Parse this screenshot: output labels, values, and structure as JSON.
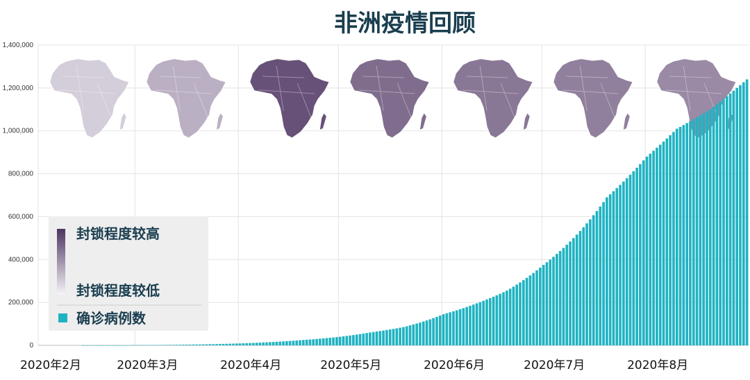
{
  "chart_data": {
    "type": "bar",
    "title": "非洲疫情回顾",
    "xlabel": "",
    "ylabel": "",
    "ylim": [
      0,
      1400000
    ],
    "y_ticks": [
      0,
      200000,
      400000,
      600000,
      800000,
      1000000,
      1200000,
      1400000
    ],
    "y_tick_labels": [
      "0",
      "200,000",
      "400,000",
      "600,000",
      "800,000",
      "1,000,000",
      "1,200,000",
      "1,400,000"
    ],
    "x_tick_labels": [
      "2020年2月",
      "2020年3月",
      "2020年4月",
      "2020年5月",
      "2020年6月",
      "2020年7月",
      "2020年8月"
    ],
    "x_range": [
      "2020-02-01",
      "2020-08-31"
    ],
    "grid": true,
    "series": [
      {
        "name": "确诊病例数",
        "color": "#1fb3c2",
        "x": [
          "2020-02-14",
          "2020-03-01",
          "2020-03-15",
          "2020-03-25",
          "2020-04-01",
          "2020-04-10",
          "2020-04-20",
          "2020-05-01",
          "2020-05-10",
          "2020-05-20",
          "2020-06-01",
          "2020-06-10",
          "2020-06-20",
          "2020-07-01",
          "2020-07-10",
          "2020-07-20",
          "2020-08-01",
          "2020-08-10",
          "2020-08-20",
          "2020-08-31"
        ],
        "values": [
          1,
          1000,
          3000,
          6000,
          9000,
          15000,
          25000,
          40000,
          60000,
          85000,
          145000,
          190000,
          255000,
          375000,
          500000,
          690000,
          880000,
          1010000,
          1100000,
          1240000
        ]
      }
    ],
    "legend": {
      "placement": "bottom-left",
      "items": [
        "封锁程度较高",
        "封锁程度较低",
        "确诊病例数"
      ]
    },
    "map_inset": {
      "description_icon": "africa-map-icon",
      "scale_high_color": "#4e3461",
      "scale_low_color": "#f6f3f8",
      "snapshot_months": [
        "2020-02",
        "2020-03",
        "2020-04",
        "2020-05",
        "2020-06",
        "2020-07",
        "2020-08"
      ],
      "lockdown_level": [
        0.2,
        0.35,
        0.85,
        0.7,
        0.65,
        0.6,
        0.55
      ]
    }
  }
}
